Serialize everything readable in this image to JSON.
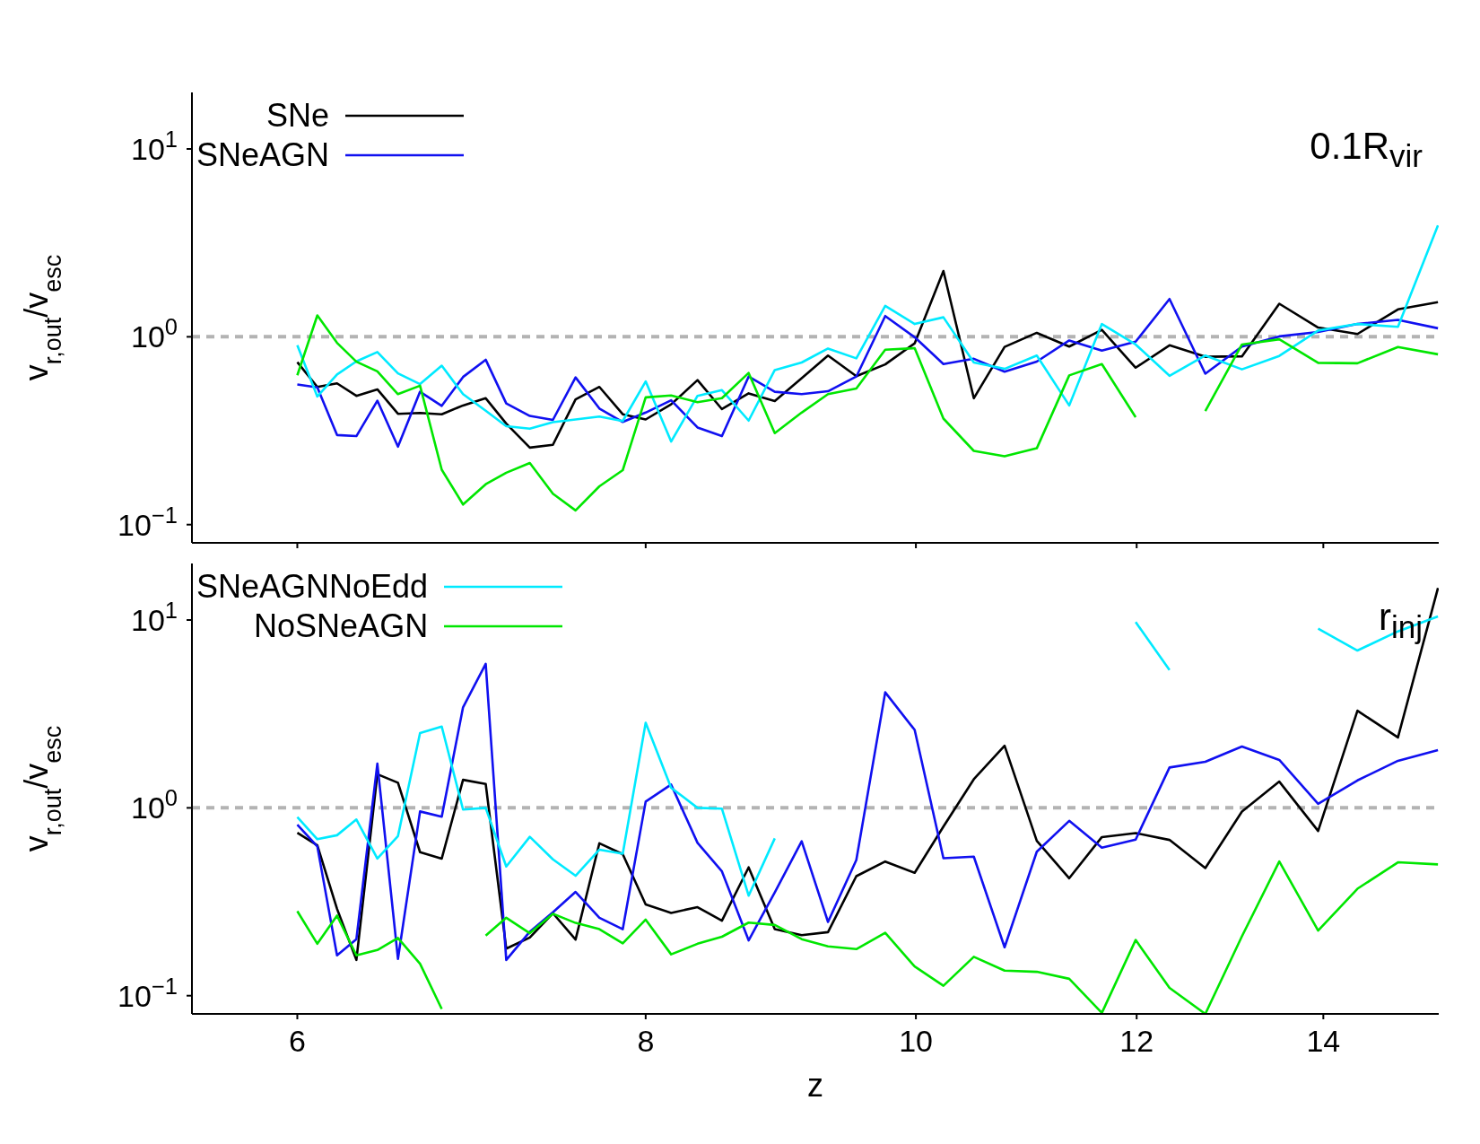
{
  "chart_data": [
    {
      "type": "line",
      "ylabel": "v$_{r,out}$/v$_{esc}$",
      "annotations": [
        "0.1R$_{vir}$"
      ],
      "legend": "top left",
      "tick_labels": "y",
      "log": "xy",
      "x": [
        6.0,
        6.1,
        6.2,
        6.3,
        6.41,
        6.52,
        6.64,
        6.76,
        6.88,
        7.01,
        7.13,
        7.27,
        7.41,
        7.55,
        7.7,
        7.85,
        8.0,
        8.17,
        8.35,
        8.52,
        8.71,
        8.9,
        9.1,
        9.3,
        9.52,
        9.75,
        9.99,
        10.23,
        10.49,
        10.76,
        11.05,
        11.35,
        11.66,
        11.99,
        12.33,
        12.7,
        13.09,
        13.5,
        13.94,
        14.4,
        14.89,
        15.39
      ],
      "xlim": [
        5.5,
        15.4
      ],
      "xticks": [
        6,
        8,
        10,
        12,
        14
      ],
      "ylim": [
        0.08,
        20
      ],
      "yticks": [
        {
          "value": 0.1,
          "label": "10$^{−1}$"
        },
        {
          "value": 1,
          "label": "10$^{0}$"
        },
        {
          "value": 10,
          "label": "10$^{1}$"
        }
      ],
      "ref_lines": [
        {
          "axis": "y",
          "value": 1,
          "color": "#b3b3b3",
          "line_style": "dashed"
        }
      ],
      "series": [
        {
          "name": "SNe",
          "color": "#000000",
          "values": [
            0.733,
            0.541,
            0.565,
            0.485,
            0.525,
            0.389,
            0.393,
            0.387,
            0.431,
            0.471,
            0.345,
            0.257,
            0.266,
            0.464,
            0.541,
            0.387,
            0.363,
            0.437,
            0.588,
            0.412,
            0.5,
            0.455,
            0.602,
            0.795,
            0.617,
            0.713,
            0.923,
            2.24,
            0.471,
            0.883,
            1.05,
            0.887,
            1.088,
            0.685,
            0.901,
            0.783,
            0.787,
            1.5,
            1.12,
            1.035,
            1.4,
            1.53
          ]
        },
        {
          "name": "SNeAGN",
          "color": "#1010f0",
          "values": [
            0.557,
            0.538,
            0.3,
            0.296,
            0.457,
            0.26,
            0.51,
            0.429,
            0.611,
            0.755,
            0.442,
            0.379,
            0.361,
            0.608,
            0.415,
            0.352,
            0.395,
            0.459,
            0.329,
            0.296,
            0.614,
            0.51,
            0.495,
            0.513,
            0.614,
            1.29,
            0.995,
            0.716,
            0.764,
            0.652,
            0.738,
            0.956,
            0.844,
            0.942,
            1.59,
            0.636,
            0.887,
            1.005,
            1.06,
            1.17,
            1.23,
            1.11
          ]
        },
        {
          "color": "#00eaff",
          "values": [
            0.902,
            0.481,
            0.63,
            0.74,
            0.829,
            0.639,
            0.56,
            0.702,
            0.495,
            0.404,
            0.334,
            0.324,
            0.351,
            0.363,
            0.376,
            0.356,
            0.579,
            0.277,
            0.485,
            0.52,
            0.358,
            0.665,
            0.73,
            0.866,
            0.768,
            1.46,
            1.17,
            1.27,
            0.73,
            0.675,
            0.795,
            0.431,
            1.17,
            0.91,
            0.62,
            0.795,
            0.671,
            0.791,
            1.08,
            1.17,
            1.13,
            3.92
          ]
        },
        {
          "color": "#00e600",
          "values": [
            0.624,
            1.3,
            0.929,
            0.737,
            0.655,
            0.495,
            0.549,
            0.196,
            0.128,
            0.164,
            0.189,
            0.213,
            0.146,
            0.119,
            0.16,
            0.195,
            0.476,
            0.487,
            0.449,
            0.471,
            0.642,
            0.307,
            0.395,
            0.495,
            0.531,
            0.853,
            0.87,
            0.367,
            0.247,
            0.231,
            0.255,
            0.623,
            0.716,
            0.373,
            null,
            0.402,
            0.91,
            0.97,
            0.727,
            0.723,
            0.883,
            0.807
          ]
        }
      ]
    },
    {
      "type": "line",
      "xlabel": "z",
      "ylabel": "v$_{r,out}$/v$_{esc}$",
      "annotations": [
        "r$_{inj}$"
      ],
      "legend": "top left",
      "log": "xy",
      "x": [
        6.0,
        6.1,
        6.2,
        6.3,
        6.41,
        6.52,
        6.64,
        6.76,
        6.88,
        7.01,
        7.13,
        7.27,
        7.41,
        7.55,
        7.7,
        7.85,
        8.0,
        8.17,
        8.35,
        8.52,
        8.71,
        8.9,
        9.1,
        9.3,
        9.52,
        9.75,
        9.99,
        10.23,
        10.49,
        10.76,
        11.05,
        11.35,
        11.66,
        11.99,
        12.33,
        12.7,
        13.09,
        13.5,
        13.94,
        14.4,
        14.89,
        15.39
      ],
      "xlim": [
        5.5,
        15.4
      ],
      "xticks": [
        6,
        8,
        10,
        12,
        14
      ],
      "ylim": [
        0.08,
        20
      ],
      "yticks": [
        {
          "value": 0.1,
          "label": "10$^{−1}$"
        },
        {
          "value": 1,
          "label": "10$^{0}$"
        },
        {
          "value": 10,
          "label": "10$^{1}$"
        }
      ],
      "ref_lines": [
        {
          "axis": "y",
          "value": 1,
          "color": "#b3b3b3",
          "line_style": "dashed"
        }
      ],
      "series": [
        {
          "color": "#000000",
          "values": [
            0.737,
            0.632,
            0.29,
            0.155,
            1.51,
            1.36,
            0.581,
            0.537,
            1.41,
            1.34,
            0.178,
            0.204,
            0.275,
            0.199,
            0.648,
            0.567,
            0.306,
            0.276,
            0.296,
            0.251,
            0.482,
            0.226,
            0.21,
            0.218,
            0.433,
            0.518,
            0.451,
            0.795,
            1.42,
            2.14,
            0.668,
            0.422,
            0.699,
            0.734,
            0.675,
            0.478,
            0.956,
            1.38,
            0.753,
            3.29,
            2.37,
            14.8
          ]
        },
        {
          "color": "#1010f0",
          "values": [
            0.813,
            0.623,
            0.164,
            0.2,
            1.72,
            0.157,
            0.957,
            0.897,
            3.43,
            5.84,
            0.155,
            0.219,
            0.278,
            0.357,
            0.26,
            0.226,
            1.08,
            1.33,
            0.651,
            0.459,
            0.197,
            0.355,
            0.664,
            0.247,
            0.528,
            4.12,
            2.6,
            0.539,
            0.55,
            0.181,
            0.584,
            0.853,
            0.614,
            0.678,
            1.64,
            1.76,
            2.12,
            1.8,
            1.05,
            1.4,
            1.78,
            2.03
          ]
        },
        {
          "name": "SNeAGNNoEdd",
          "color": "#00eaff",
          "values": [
            0.893,
            0.681,
            0.715,
            0.867,
            0.537,
            0.708,
            2.5,
            2.71,
            0.98,
            1.0,
            0.487,
            0.701,
            0.532,
            0.435,
            0.599,
            0.57,
            2.84,
            1.28,
            1.0,
            0.99,
            0.341,
            0.688,
            null,
            null,
            null,
            null,
            null,
            null,
            null,
            null,
            null,
            null,
            null,
            9.75,
            5.42,
            null,
            null,
            null,
            9.0,
            6.88,
            8.7,
            10.45
          ]
        },
        {
          "name": "NoSNeAGN",
          "color": "#00e600",
          "values": [
            0.282,
            0.189,
            0.267,
            0.164,
            0.175,
            0.203,
            0.148,
            0.085,
            null,
            0.209,
            0.26,
            0.215,
            0.273,
            0.244,
            0.226,
            0.19,
            0.254,
            0.166,
            0.189,
            0.206,
            0.245,
            0.238,
            0.2,
            0.183,
            0.177,
            0.216,
            0.143,
            0.113,
            0.161,
            0.136,
            0.134,
            0.123,
            0.081,
            0.198,
            0.11,
            0.08,
            0.207,
            0.518,
            0.222,
            0.371,
            0.513,
            0.5
          ]
        }
      ]
    }
  ]
}
